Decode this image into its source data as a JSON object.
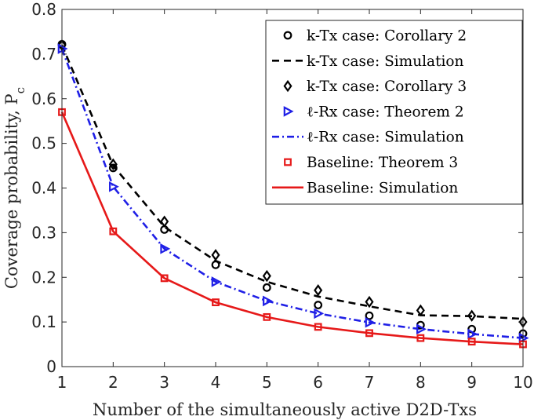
{
  "chart_data": {
    "type": "line",
    "title": "",
    "xlabel": "Number of the simultaneously active D2D-Txs",
    "ylabel": "Coverage probability, P",
    "ylabel_subscript": "c",
    "xlim": [
      1,
      10
    ],
    "ylim": [
      0,
      0.8
    ],
    "xticks": [
      "1",
      "2",
      "3",
      "4",
      "5",
      "6",
      "7",
      "8",
      "9",
      "10"
    ],
    "yticks": [
      "0",
      "0.1",
      "0.2",
      "0.3",
      "0.4",
      "0.5",
      "0.6",
      "0.7",
      "0.8"
    ],
    "grid": false,
    "legend_position": "top-right",
    "x": [
      1,
      2,
      3,
      4,
      5,
      6,
      7,
      8,
      9,
      10
    ],
    "series": [
      {
        "name": "k-Tx case: Corollary 2",
        "style": "marker",
        "marker": "circle",
        "color": "#000000",
        "values": [
          0.722,
          0.445,
          0.307,
          0.228,
          0.177,
          0.138,
          0.114,
          0.093,
          0.084,
          0.074
        ]
      },
      {
        "name": "k-Tx case: Simulation",
        "style": "dashed",
        "color": "#000000",
        "values": [
          0.72,
          0.45,
          0.313,
          0.237,
          0.19,
          0.157,
          0.135,
          0.115,
          0.113,
          0.107
        ]
      },
      {
        "name": "k-Tx case: Corollary 3",
        "style": "marker",
        "marker": "diamond",
        "color": "#000000",
        "values": [
          0.72,
          0.453,
          0.325,
          0.25,
          0.203,
          0.171,
          0.145,
          0.126,
          0.114,
          0.1
        ]
      },
      {
        "name": "ℓ-Rx case: Theorem 2",
        "style": "marker",
        "marker": "triangle-right",
        "color": "#1f1fe6",
        "values": [
          0.712,
          0.403,
          0.264,
          0.19,
          0.147,
          0.119,
          0.099,
          0.084,
          0.073,
          0.064
        ]
      },
      {
        "name": "ℓ-Rx case: Simulation",
        "style": "dashdot",
        "color": "#1f1fe6",
        "values": [
          0.712,
          0.403,
          0.264,
          0.19,
          0.147,
          0.119,
          0.099,
          0.084,
          0.073,
          0.064
        ]
      },
      {
        "name": "Baseline: Theorem 3",
        "style": "marker",
        "marker": "square",
        "color": "#e61919",
        "values": [
          0.57,
          0.303,
          0.198,
          0.144,
          0.111,
          0.089,
          0.075,
          0.064,
          0.056,
          0.05
        ]
      },
      {
        "name": "Baseline: Simulation",
        "style": "solid",
        "color": "#e61919",
        "values": [
          0.57,
          0.303,
          0.198,
          0.144,
          0.111,
          0.089,
          0.075,
          0.064,
          0.056,
          0.05
        ]
      }
    ]
  }
}
